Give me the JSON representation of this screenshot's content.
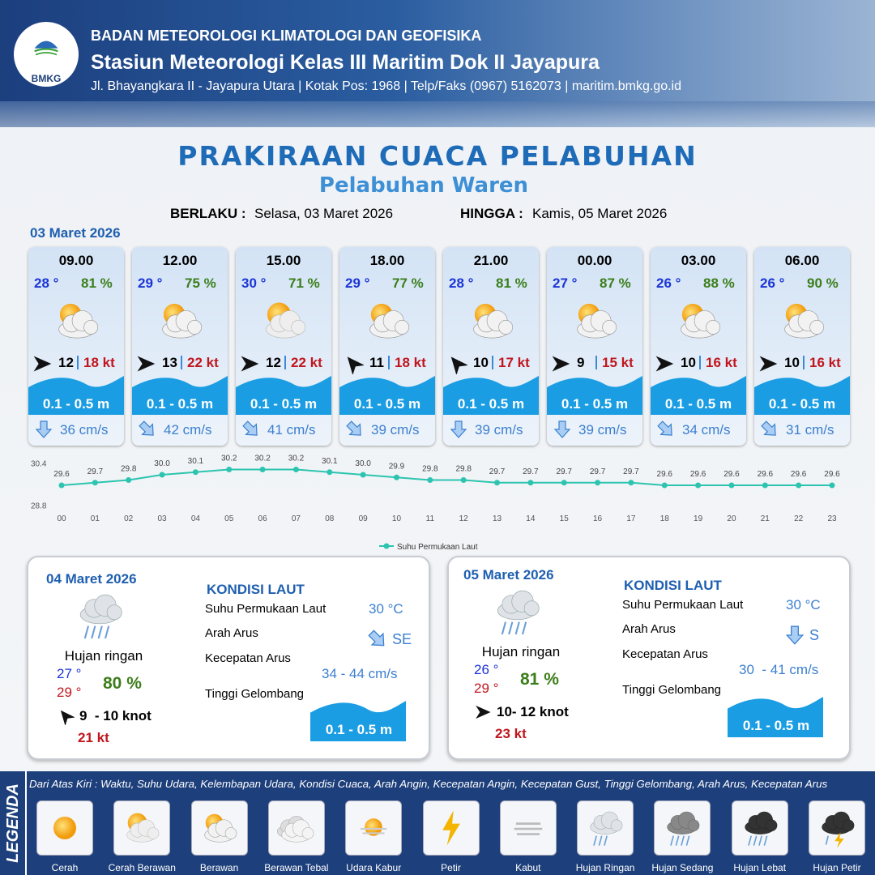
{
  "header": {
    "agency": "BADAN METEOROLOGI KLIMATOLOGI DAN GEOFISIKA",
    "station": "Stasiun Meteorologi Kelas III Maritim Dok II Jayapura",
    "address": "Jl. Bhayangkara II - Jayapura Utara | Kotak Pos: 1968 | Telp/Faks (0967) 5162073 | maritim.bmkg.go.id",
    "logo_text": "BMKG"
  },
  "title": "PRAKIRAAN CUACA PELABUHAN",
  "subtitle": "Pelabuhan Waren",
  "validity": {
    "from_label": "BERLAKU :",
    "from": "Selasa, 03 Maret 2026",
    "to_label": "HINGGA :",
    "to": "Kamis, 05 Maret 2026"
  },
  "today": {
    "date": "03 Maret 2026",
    "hours": [
      {
        "time": "09.00",
        "temp": "28 °",
        "humidity": "81 %",
        "wind": "12",
        "gust": "18 kt",
        "wave": "0.1 - 0.5 m",
        "current": "36 cm/s"
      },
      {
        "time": "12.00",
        "temp": "29 °",
        "humidity": "75 %",
        "wind": "13",
        "gust": "22 kt",
        "wave": "0.1 - 0.5 m",
        "current": "42 cm/s"
      },
      {
        "time": "15.00",
        "temp": "30 °",
        "humidity": "71 %",
        "wind": "12",
        "gust": "22 kt",
        "wave": "0.1 - 0.5 m",
        "current": "41 cm/s"
      },
      {
        "time": "18.00",
        "temp": "29 °",
        "humidity": "77 %",
        "wind": "11",
        "gust": "18 kt",
        "wave": "0.1 - 0.5 m",
        "current": "39 cm/s"
      },
      {
        "time": "21.00",
        "temp": "28 °",
        "humidity": "81 %",
        "wind": "10",
        "gust": "17 kt",
        "wave": "0.1 - 0.5 m",
        "current": "39 cm/s"
      },
      {
        "time": "00.00",
        "temp": "27 °",
        "humidity": "87 %",
        "wind": "9",
        "gust": "15 kt",
        "wave": "0.1 - 0.5 m",
        "current": "39 cm/s"
      },
      {
        "time": "03.00",
        "temp": "26 °",
        "humidity": "88 %",
        "wind": "10",
        "gust": "16 kt",
        "wave": "0.1 - 0.5 m",
        "current": "34 cm/s"
      },
      {
        "time": "06.00",
        "temp": "26 °",
        "humidity": "90 %",
        "wind": "10",
        "gust": "16 kt",
        "wave": "0.1 - 0.5 m",
        "current": "31 cm/s"
      }
    ]
  },
  "sst_chart": {
    "type": "line",
    "categories": [
      "00",
      "01",
      "02",
      "03",
      "04",
      "05",
      "06",
      "07",
      "08",
      "09",
      "10",
      "11",
      "12",
      "13",
      "14",
      "15",
      "16",
      "17",
      "18",
      "19",
      "20",
      "21",
      "22",
      "23"
    ],
    "series": [
      {
        "name": "Suhu Permukaan Laut",
        "color": "#2cc4b0",
        "values": [
          29.6,
          29.7,
          29.8,
          30.0,
          30.1,
          30.2,
          30.2,
          30.2,
          30.1,
          30.0,
          29.9,
          29.8,
          29.8,
          29.7,
          29.7,
          29.7,
          29.7,
          29.7,
          29.6,
          29.6,
          29.6,
          29.6,
          29.6,
          29.6
        ],
        "value_labels": [
          "29.6",
          "29.7",
          "29.8",
          "30.0",
          "30.1",
          "30.2",
          "30.2",
          "30.2",
          "30.1",
          "30.0",
          "29.9",
          "29.8",
          "29.8",
          "29.7",
          "29.7",
          "29.7",
          "29.7",
          "29.7",
          "29.6",
          "29.6",
          "29.6",
          "29.6",
          "29.6",
          "29.6"
        ]
      }
    ],
    "ylim": [
      28.8,
      30.4
    ],
    "yticks": [
      28.8,
      30.4
    ],
    "legend": "bottom"
  },
  "days": [
    {
      "date": "04 Maret 2026",
      "condition": "Hujan ringan",
      "temp_min": "27 °",
      "temp_max": "29 °",
      "humidity": "80 %",
      "wind": "9  - 10 knot",
      "gust": "21 kt",
      "sea": {
        "heading": "KONDISI LAUT",
        "sst_label": "Suhu Permukaan Laut",
        "sst": "30 °C",
        "direction_label": "Arah Arus",
        "direction": "SE",
        "speed_label": "Kecepatan Arus",
        "speed": "34 - 44 cm/s",
        "wave_label": "Tinggi Gelombang",
        "wave": "0.1 - 0.5 m"
      }
    },
    {
      "date": "05 Maret 2026",
      "condition": "Hujan ringan",
      "temp_min": "26 °",
      "temp_max": "29 °",
      "humidity": "81 %",
      "wind": "10- 12 knot",
      "gust": "23 kt",
      "sea": {
        "heading": "KONDISI LAUT",
        "sst_label": "Suhu Permukaan Laut",
        "sst": "30 °C",
        "direction_label": "Arah Arus",
        "direction": "S",
        "speed_label": "Kecepatan Arus",
        "speed": "30  - 41 cm/s",
        "wave_label": "Tinggi Gelombang",
        "wave": "0.1 - 0.5 m"
      }
    }
  ],
  "legend": {
    "title": "LEGENDA",
    "description": "Dari Atas Kiri : Waktu, Suhu Udara, Kelembapan Udara, Kondisi Cuaca, Arah Angin, Kecepatan Angin, Kecepatan Gust, Tinggi Gelombang, Arah Arus, Kecepatan Arus",
    "items": [
      "Cerah",
      "Cerah Berawan",
      "Berawan",
      "Berawan Tebal",
      "Udara Kabur",
      "Petir",
      "Kabut",
      "Hujan Ringan",
      "Hujan Sedang",
      "Hujan Lebat",
      "Hujan Petir"
    ]
  }
}
